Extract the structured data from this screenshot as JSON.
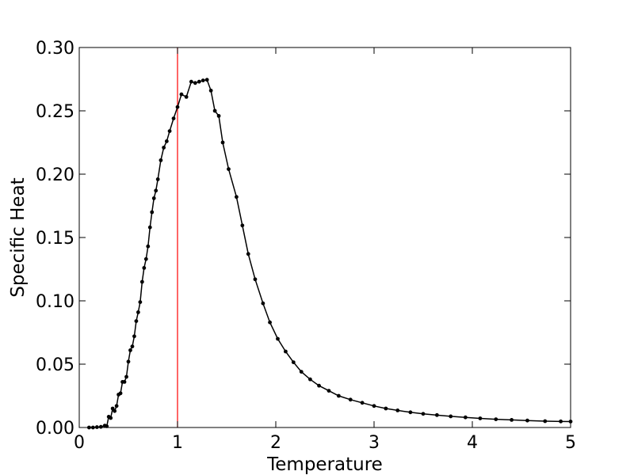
{
  "chart_data": {
    "type": "line",
    "title": "",
    "xlabel": "Temperature",
    "ylabel": "Specific Heat",
    "xlim": [
      0,
      5
    ],
    "ylim": [
      0.0,
      0.3
    ],
    "grid": false,
    "x_ticks": [
      0,
      1,
      2,
      3,
      4,
      5
    ],
    "x_tick_labels": [
      "0",
      "1",
      "2",
      "3",
      "4",
      "5"
    ],
    "y_ticks": [
      0.0,
      0.05,
      0.1,
      0.15,
      0.2,
      0.25,
      0.3
    ],
    "y_tick_labels": [
      "0.00",
      "0.05",
      "0.10",
      "0.15",
      "0.20",
      "0.25",
      "0.30"
    ],
    "reference_line": {
      "orientation": "vertical",
      "x": 1.0,
      "color": "#ff0000"
    },
    "series": [
      {
        "color": "#000000",
        "marker": "dot",
        "x": [
          0.1,
          0.14,
          0.18,
          0.22,
          0.26,
          0.28,
          0.3,
          0.32,
          0.34,
          0.36,
          0.38,
          0.4,
          0.42,
          0.44,
          0.46,
          0.48,
          0.5,
          0.52,
          0.54,
          0.56,
          0.58,
          0.6,
          0.62,
          0.64,
          0.66,
          0.68,
          0.7,
          0.72,
          0.74,
          0.76,
          0.78,
          0.8,
          0.83,
          0.86,
          0.89,
          0.92,
          0.96,
          1.0,
          1.04,
          1.09,
          1.14,
          1.18,
          1.22,
          1.26,
          1.3,
          1.34,
          1.38,
          1.42,
          1.46,
          1.52,
          1.6,
          1.66,
          1.72,
          1.79,
          1.87,
          1.94,
          2.02,
          2.1,
          2.18,
          2.26,
          2.35,
          2.44,
          2.54,
          2.64,
          2.76,
          2.88,
          3.0,
          3.12,
          3.24,
          3.37,
          3.5,
          3.64,
          3.78,
          3.93,
          4.08,
          4.24,
          4.4,
          4.56,
          4.74,
          4.9,
          5.0
        ],
        "y": [
          0.0,
          0.0,
          0.0003,
          0.0005,
          0.0015,
          0.001,
          0.0085,
          0.0075,
          0.015,
          0.013,
          0.017,
          0.026,
          0.027,
          0.036,
          0.036,
          0.04,
          0.052,
          0.061,
          0.064,
          0.072,
          0.084,
          0.091,
          0.099,
          0.115,
          0.126,
          0.133,
          0.143,
          0.158,
          0.17,
          0.181,
          0.187,
          0.196,
          0.211,
          0.221,
          0.226,
          0.234,
          0.244,
          0.253,
          0.263,
          0.261,
          0.273,
          0.272,
          0.273,
          0.274,
          0.2745,
          0.266,
          0.25,
          0.246,
          0.225,
          0.204,
          0.182,
          0.1595,
          0.137,
          0.117,
          0.098,
          0.083,
          0.07,
          0.06,
          0.0515,
          0.044,
          0.038,
          0.033,
          0.029,
          0.025,
          0.022,
          0.0195,
          0.017,
          0.015,
          0.0135,
          0.012,
          0.0108,
          0.0098,
          0.0088,
          0.008,
          0.0072,
          0.0065,
          0.006,
          0.0055,
          0.005,
          0.0048,
          0.0047
        ]
      }
    ]
  }
}
